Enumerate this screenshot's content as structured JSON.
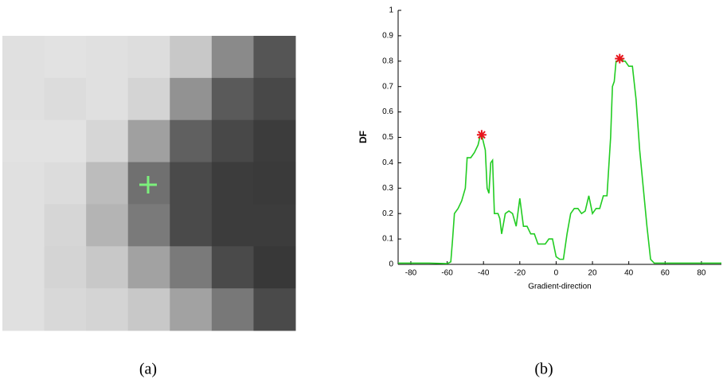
{
  "figure": {
    "captions": [
      "(a)",
      "(b)"
    ]
  },
  "chart_data": {
    "type": "line",
    "y_label": "DF",
    "x_label": "Gradient-direction",
    "xlim": [
      -87,
      91
    ],
    "xticks": [
      -80,
      -60,
      -40,
      -20,
      0,
      20,
      40,
      60,
      80
    ],
    "ylim": [
      0,
      1
    ],
    "yticks": [
      0,
      0.1,
      0.2,
      0.3,
      0.4,
      0.5,
      0.6,
      0.7,
      0.8,
      0.9,
      1
    ],
    "x": [
      -87,
      -80,
      -70,
      -60,
      -58,
      -57,
      -56,
      -54,
      -52,
      -50,
      -49,
      -47,
      -45,
      -43,
      -42,
      -41,
      -40,
      -39,
      -38,
      -37,
      -36,
      -35,
      -34,
      -33,
      -32,
      -31,
      -30,
      -28,
      -26,
      -24,
      -22,
      -20,
      -18,
      -16,
      -14,
      -12,
      -10,
      -8,
      -6,
      -4,
      -2,
      0,
      2,
      4,
      6,
      8,
      10,
      12,
      14,
      16,
      18,
      20,
      22,
      24,
      26,
      28,
      30,
      31,
      32,
      33,
      34,
      35,
      36,
      37,
      38,
      40,
      42,
      44,
      46,
      48,
      50,
      52,
      54,
      60,
      70,
      80,
      91
    ],
    "series": [
      {
        "color": "#22cc22",
        "values": [
          0.005,
          0.005,
          0.005,
          0.003,
          0.01,
          0.1,
          0.2,
          0.22,
          0.25,
          0.3,
          0.42,
          0.42,
          0.44,
          0.47,
          0.5,
          0.51,
          0.48,
          0.45,
          0.3,
          0.28,
          0.4,
          0.41,
          0.2,
          0.2,
          0.2,
          0.18,
          0.12,
          0.2,
          0.21,
          0.2,
          0.15,
          0.26,
          0.15,
          0.15,
          0.12,
          0.12,
          0.08,
          0.08,
          0.08,
          0.1,
          0.1,
          0.03,
          0.02,
          0.02,
          0.12,
          0.2,
          0.22,
          0.22,
          0.2,
          0.21,
          0.27,
          0.2,
          0.22,
          0.22,
          0.27,
          0.27,
          0.5,
          0.7,
          0.72,
          0.8,
          0.8,
          0.81,
          0.81,
          0.8,
          0.8,
          0.78,
          0.78,
          0.65,
          0.45,
          0.3,
          0.15,
          0.02,
          0.005,
          0.005,
          0.005,
          0.005,
          0.005
        ]
      }
    ],
    "peaks": {
      "x": [
        -41,
        35
      ],
      "values": [
        0.51,
        0.81
      ],
      "color": "#e8141c"
    }
  }
}
